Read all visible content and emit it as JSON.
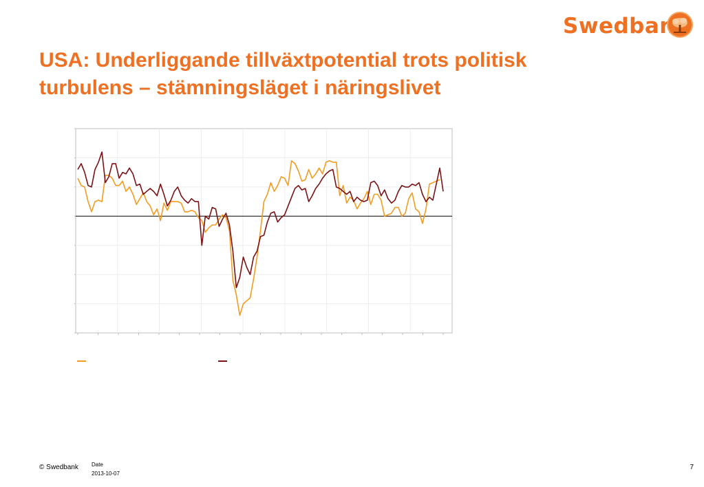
{
  "brand": {
    "name": "Swedbank",
    "color": "#ee7023",
    "mark_icon": "oak-tree-icon"
  },
  "slide": {
    "title": "USA: Underliggande tillväxtpotential trots politisk turbulens – stämningsläget i näringslivet",
    "title_color": "#ee7023"
  },
  "footer": {
    "copyright": "© Swedbank",
    "date_label": "Date",
    "date": "2013-10-07",
    "page": "7"
  },
  "chart_data": {
    "type": "line",
    "title": "",
    "xlabel": "",
    "ylabel": "",
    "ylim": [
      -4,
      3
    ],
    "zero_line": 0,
    "grid": true,
    "x_start": "2000-01",
    "x_step": "month",
    "legend": {
      "placement": "bottom-left",
      "entries": [
        "",
        ""
      ]
    },
    "series": [
      {
        "color": "#f39c1f",
        "values": [
          1.3,
          1.05,
          1.0,
          0.5,
          0.15,
          0.5,
          0.55,
          0.5,
          1.4,
          1.4,
          1.3,
          1.05,
          1.05,
          1.2,
          0.85,
          1.0,
          0.75,
          0.4,
          0.6,
          0.8,
          0.5,
          0.35,
          0.05,
          0.25,
          -0.15,
          0.45,
          0.2,
          0.5,
          0.5,
          0.5,
          0.45,
          0.15,
          0.15,
          0.2,
          0.15,
          -0.05,
          -0.15,
          -0.55,
          -0.4,
          -0.3,
          -0.3,
          -0.1,
          0.05,
          -0.05,
          -0.5,
          -2.2,
          -2.7,
          -3.4,
          -3.0,
          -2.9,
          -2.8,
          -2.15,
          -1.4,
          -0.5,
          0.5,
          0.75,
          1.15,
          0.85,
          1.05,
          1.35,
          1.3,
          1.05,
          1.9,
          1.8,
          1.55,
          1.2,
          1.25,
          1.6,
          1.3,
          1.45,
          1.65,
          1.45,
          1.85,
          1.9,
          1.85,
          1.85,
          0.7,
          1.05,
          0.45,
          0.65,
          0.55,
          0.25,
          0.45,
          0.6,
          0.85,
          0.4,
          0.75,
          0.75,
          0.55,
          0.0,
          0.05,
          0.1,
          0.3,
          0.3,
          0.0,
          0.1,
          0.6,
          0.8,
          0.25,
          0.15,
          -0.25,
          0.25,
          1.1,
          1.15,
          1.2,
          1.25
        ]
      },
      {
        "color": "#7b1113",
        "values": [
          1.6,
          1.8,
          1.5,
          1.05,
          1.0,
          1.6,
          1.85,
          2.2,
          1.15,
          1.35,
          1.8,
          1.8,
          1.3,
          1.5,
          1.45,
          1.65,
          1.45,
          1.05,
          1.1,
          0.75,
          0.85,
          0.95,
          0.85,
          0.7,
          1.1,
          0.75,
          0.35,
          0.55,
          0.85,
          1.0,
          0.7,
          0.55,
          0.45,
          0.6,
          0.5,
          0.5,
          -1.0,
          0.0,
          -0.1,
          0.3,
          0.25,
          -0.35,
          -0.1,
          0.1,
          -0.3,
          -1.2,
          -2.45,
          -2.1,
          -1.4,
          -1.75,
          -2.0,
          -1.4,
          -1.2,
          -0.7,
          -0.65,
          -0.2,
          0.1,
          0.15,
          -0.2,
          -0.05,
          0.05,
          0.35,
          0.65,
          0.95,
          1.05,
          0.9,
          0.95,
          0.5,
          0.7,
          0.95,
          1.1,
          1.3,
          1.45,
          1.55,
          1.6,
          1.0,
          0.95,
          0.85,
          0.75,
          0.85,
          0.5,
          0.65,
          0.55,
          0.5,
          0.55,
          1.15,
          1.2,
          1.05,
          0.7,
          0.9,
          0.6,
          0.45,
          0.55,
          0.85,
          1.05,
          1.0,
          1.0,
          1.1,
          1.05,
          1.15,
          0.75,
          0.5,
          0.65,
          0.55,
          1.1,
          1.65,
          0.85
        ]
      }
    ]
  }
}
